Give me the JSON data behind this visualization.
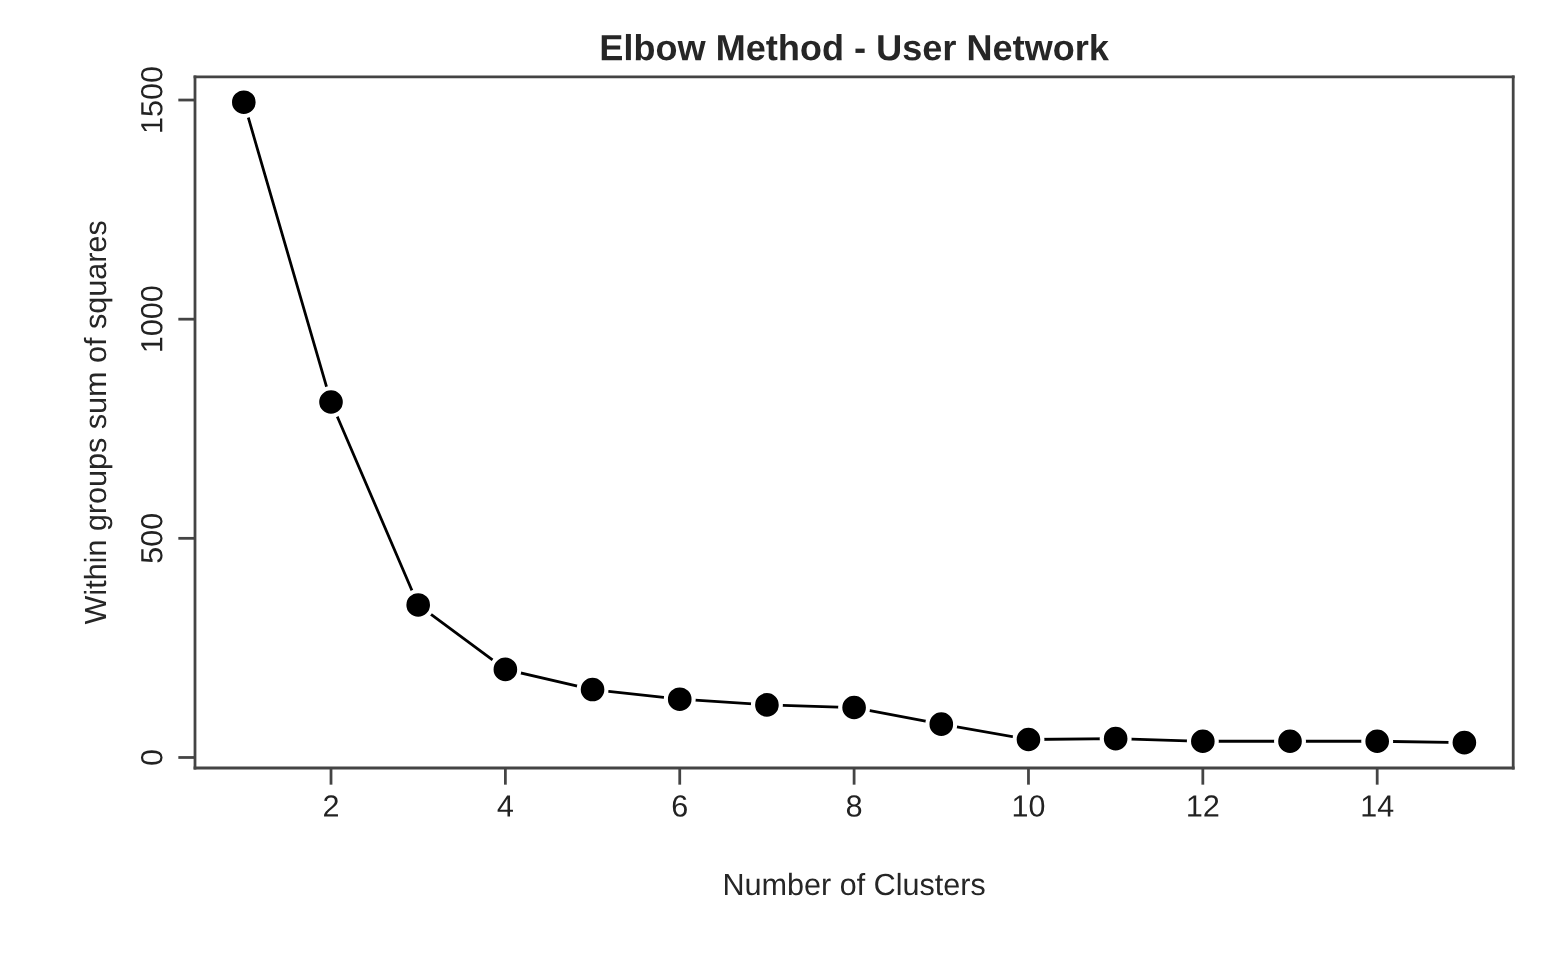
{
  "chart_data": {
    "type": "line",
    "title": "Elbow Method - User Network",
    "xlabel": "Number of Clusters",
    "ylabel": "Within groups sum of squares",
    "x": [
      1,
      2,
      3,
      4,
      5,
      6,
      7,
      8,
      9,
      10,
      11,
      12,
      13,
      14,
      15
    ],
    "series": [
      {
        "color": "#000000",
        "values": [
          1495,
          811,
          348,
          201,
          155,
          133,
          120,
          114,
          76,
          41,
          43,
          37,
          37,
          37,
          34
        ]
      }
    ],
    "xlim": [
      0.44,
      15.56
    ],
    "xticks": [
      2,
      4,
      6,
      8,
      10,
      12,
      14
    ],
    "ylim": [
      -24,
      1553
    ],
    "yticks": [
      0,
      500,
      1000,
      1500
    ],
    "marker": "circle",
    "line_style": "solid",
    "grid": false,
    "legend": false
  }
}
